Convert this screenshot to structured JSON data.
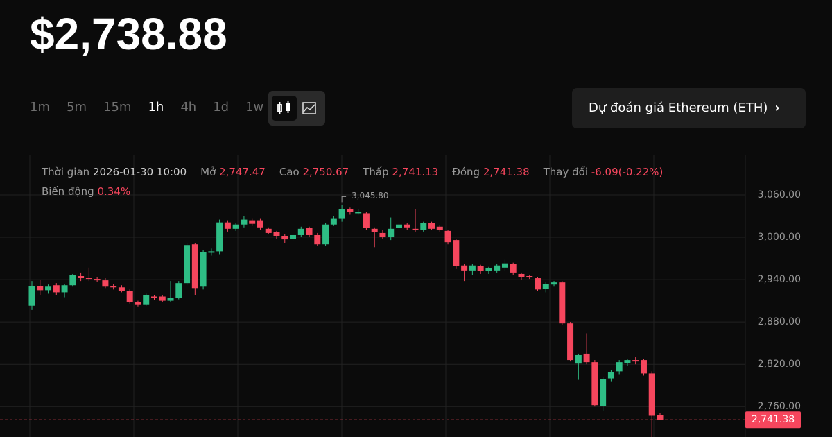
{
  "price": "$2,738.88",
  "timeframes": [
    "1m",
    "5m",
    "15m",
    "1h",
    "4h",
    "1d",
    "1w"
  ],
  "active_timeframe": "1h",
  "prediction_button": "Dự đoán giá Ethereum (ETH)",
  "chart_data": {
    "type": "candlestick",
    "info": [
      {
        "label": "Thời gian",
        "value": "2026-01-30 10:00",
        "tone": "neutral"
      },
      {
        "label": "Mở",
        "value": "2,747.47",
        "tone": "down"
      },
      {
        "label": "Cao",
        "value": "2,750.67",
        "tone": "down"
      },
      {
        "label": "Thấp",
        "value": "2,741.13",
        "tone": "down"
      },
      {
        "label": "Đóng",
        "value": "2,741.38",
        "tone": "down"
      },
      {
        "label": "Thay đổi",
        "value": "-6.09(-0.22%)",
        "tone": "down"
      },
      {
        "label": "Biến động",
        "value": "0.34%",
        "tone": "down"
      }
    ],
    "up_color": "#2ebd85",
    "down_color": "#f6465d",
    "ylim": [
      2717,
      3116
    ],
    "yticks": [
      {
        "value": 2760,
        "label": "2,760.00"
      },
      {
        "value": 2820,
        "label": "2,820.00"
      },
      {
        "value": 2880,
        "label": "2,880.00"
      },
      {
        "value": 2940,
        "label": "2,940.00"
      },
      {
        "value": 3000,
        "label": "3,000.00"
      },
      {
        "value": 3060,
        "label": "3,060.00"
      }
    ],
    "grid": true,
    "open": [
      2903,
      2931,
      2925,
      2932,
      2922,
      2932,
      2945,
      2942,
      2941,
      2939,
      2931,
      2929,
      2924,
      2908,
      2905,
      2916,
      2916,
      2910,
      2914,
      2935,
      2990,
      2930,
      2978,
      2980,
      3021,
      3012,
      3018,
      3024,
      3024,
      3012,
      3007,
      3002,
      2998,
      3003,
      3013,
      3003,
      2990,
      3018,
      3026,
      3040,
      3034,
      3034,
      3012,
      3006,
      3000,
      3013,
      3018,
      3012,
      3010,
      3020,
      3015,
      3009,
      2996,
      2960,
      2953,
      2959,
      2952,
      2953,
      2957,
      2962,
      2948,
      2945,
      2942,
      2927,
      2933,
      2936,
      2878,
      2821,
      2835,
      2823,
      2761,
      2800,
      2810,
      2822,
      2826,
      2826,
      2807,
      2747.47
    ],
    "high": [
      2938,
      2940,
      2933,
      2935,
      2934,
      2948,
      2950,
      2957,
      2944,
      2942,
      2934,
      2932,
      2926,
      2910,
      2920,
      2918,
      2918,
      2938,
      2938,
      2992,
      2992,
      2982,
      2984,
      3025,
      3024,
      3020,
      3030,
      3026,
      3026,
      3014,
      3009,
      3004,
      3005,
      3015,
      3015,
      3006,
      3020,
      3030,
      3045.8,
      3042,
      3040,
      3036,
      3014,
      3010,
      3028,
      3020,
      3020,
      3040,
      3022,
      3022,
      3017,
      3010,
      2998,
      2962,
      2962,
      2961,
      2958,
      2962,
      2968,
      2964,
      2950,
      2947,
      2944,
      2936,
      2938,
      2938,
      2880,
      2835,
      2864,
      2826,
      2802,
      2812,
      2826,
      2828,
      2830,
      2828,
      2810,
      2750.67
    ],
    "low": [
      2897,
      2918,
      2920,
      2918,
      2915,
      2930,
      2938,
      2938,
      2937,
      2928,
      2926,
      2922,
      2906,
      2902,
      2903,
      2911,
      2908,
      2908,
      2912,
      2932,
      2918,
      2926,
      2974,
      2976,
      3008,
      3009,
      3014,
      3016,
      3010,
      3004,
      2998,
      2992,
      2994,
      3000,
      3000,
      2988,
      2988,
      3016,
      3022,
      3032,
      3032,
      3010,
      2986,
      2998,
      2996,
      3010,
      3010,
      3008,
      3008,
      3010,
      3008,
      2990,
      2955,
      2938,
      2946,
      2948,
      2948,
      2950,
      2953,
      2946,
      2940,
      2941,
      2924,
      2922,
      2930,
      2876,
      2824,
      2798,
      2820,
      2760,
      2754,
      2796,
      2806,
      2818,
      2820,
      2804,
      2716,
      2741.13
    ],
    "close": [
      2931,
      2925,
      2930,
      2922,
      2932,
      2946,
      2942,
      2941,
      2939,
      2930,
      2929,
      2924,
      2908,
      2905,
      2918,
      2914,
      2910,
      2914,
      2935,
      2989,
      2928,
      2979,
      2980,
      3021,
      3012,
      3018,
      3025,
      3019,
      3014,
      3006,
      3002,
      2997,
      3003,
      3012,
      3003,
      2990,
      3018,
      3026,
      3040,
      3036,
      3036,
      3013,
      3007,
      3000,
      3012,
      3018,
      3014,
      3010,
      3020,
      3012,
      3010,
      2993,
      2959,
      2953,
      2960,
      2952,
      2956,
      2960,
      2963,
      2950,
      2944,
      2943,
      2926,
      2934,
      2936,
      2878,
      2826,
      2833,
      2823,
      2762,
      2799,
      2809,
      2823,
      2826,
      2824,
      2807,
      2747,
      2741.38
    ],
    "max_annotation": {
      "value": 3045.8,
      "label": "3,045.80",
      "index": 38
    },
    "last_price": {
      "value": 2741.38,
      "label": "2,741.38"
    }
  }
}
